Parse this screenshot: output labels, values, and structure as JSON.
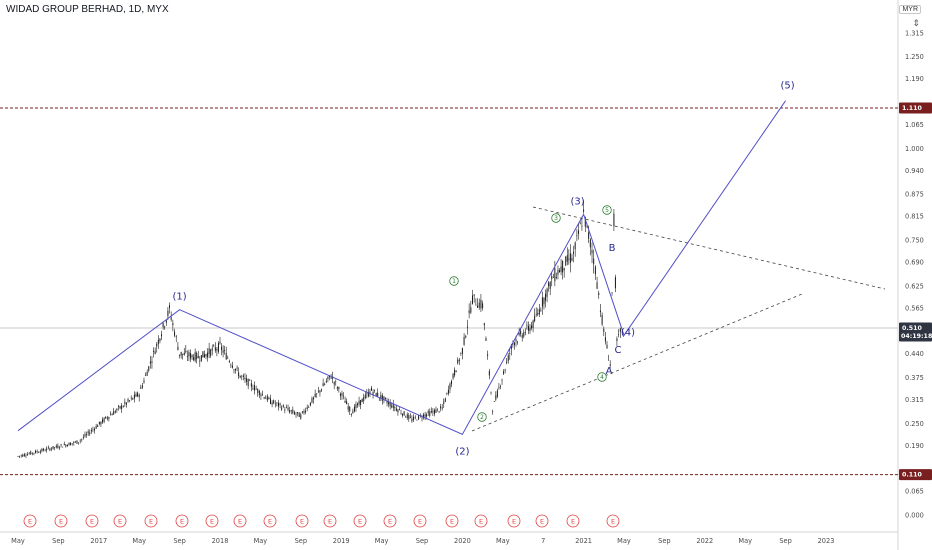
{
  "title": "WIDAD GROUP BERHAD, 1D, MYX",
  "currency": "MYR",
  "menu_icon": "collapse-arrows-icon",
  "colors": {
    "candle": "#1a1a1a",
    "wave": "#5250c8",
    "wave_label": "#2a2a8f",
    "sub_wave": "#2e7d32",
    "target_line": "#7a1f1f",
    "price_tag": "#2f3542",
    "earnings": "#e0413f"
  },
  "price_axis": {
    "ticks": [
      "1.315",
      "1.250",
      "1.190",
      "1.065",
      "1.000",
      "0.940",
      "0.875",
      "0.815",
      "0.750",
      "0.690",
      "0.625",
      "0.565",
      "0.440",
      "0.375",
      "0.315",
      "0.250",
      "0.190",
      "0.065",
      "0.000"
    ],
    "current_price": "0.510",
    "countdown": "04:19:18",
    "target_high": "1.110",
    "target_low": "0.110"
  },
  "time_axis": {
    "ticks": [
      "May",
      "Sep",
      "2017",
      "May",
      "Sep",
      "2018",
      "May",
      "Sep",
      "2019",
      "May",
      "Sep",
      "2020",
      "May",
      "7",
      "2021",
      "May",
      "Sep",
      "2022",
      "May",
      "Sep",
      "2023"
    ]
  },
  "earnings_marker": "E",
  "earnings_count": 21,
  "chart_data": {
    "type": "line",
    "title": "WIDAD GROUP BERHAD, 1D, MYX",
    "ylim": [
      0.0,
      1.35
    ],
    "x_axis": "date (2016-05 .. 2023-01)",
    "series": [
      {
        "name": "",
        "style": "daily candlesticks",
        "x": [
          "2016-05",
          "2016-08",
          "2016-11",
          "2017-02",
          "2017-05",
          "2017-08",
          "2017-09",
          "2017-11",
          "2018-01",
          "2018-03",
          "2018-06",
          "2018-09",
          "2018-12",
          "2019-02",
          "2019-04",
          "2019-06",
          "2019-08",
          "2019-09",
          "2019-11",
          "2020-01",
          "2020-02",
          "2020-03",
          "2020-04",
          "2020-06",
          "2020-08",
          "2020-10",
          "2020-12",
          "2021-01",
          "2021-02",
          "2021-03",
          "2021-03-20",
          "2021-04",
          "2021-04-10",
          "2021-04-25"
        ],
        "values": [
          0.16,
          0.18,
          0.2,
          0.27,
          0.33,
          0.56,
          0.44,
          0.43,
          0.46,
          0.38,
          0.31,
          0.27,
          0.38,
          0.28,
          0.34,
          0.3,
          0.26,
          0.27,
          0.29,
          0.45,
          0.59,
          0.57,
          0.29,
          0.47,
          0.52,
          0.65,
          0.71,
          0.82,
          0.7,
          0.5,
          0.41,
          0.8,
          0.47,
          0.51
        ]
      }
    ],
    "elliott_wave": {
      "labels": [
        "(1)",
        "(2)",
        "(3)",
        "(4)",
        "(5)"
      ],
      "points": [
        {
          "label": "",
          "date": "2016-05",
          "price": 0.23
        },
        {
          "label": "(1)",
          "date": "2017-09",
          "price": 0.56
        },
        {
          "label": "(2)",
          "date": "2020-01",
          "price": 0.22
        },
        {
          "label": "(3)",
          "date": "2021-01",
          "price": 0.82
        },
        {
          "label": "(4)",
          "date": "2021-05",
          "price": 0.49
        },
        {
          "label": "(5)",
          "date": "2022-09",
          "price": 1.13
        }
      ],
      "sub_waves": [
        "1",
        "2",
        "3",
        "4",
        "5"
      ],
      "corrective_labels": [
        "A",
        "B",
        "C"
      ]
    },
    "horizontal_levels": [
      1.11,
      0.11
    ],
    "current_price": 0.51
  }
}
